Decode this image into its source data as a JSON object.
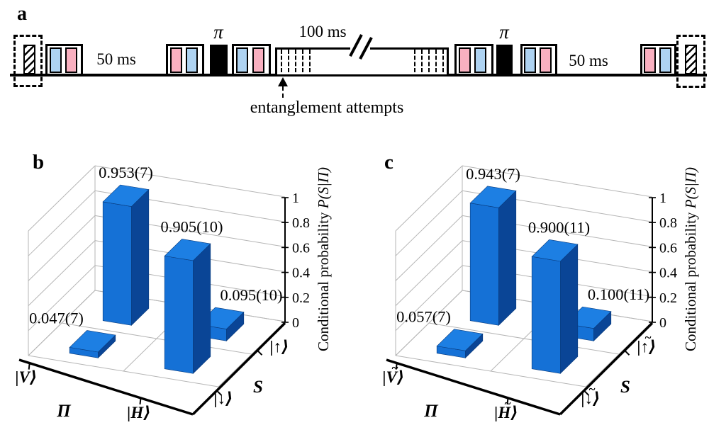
{
  "colors": {
    "pulse_blue": "#aed3f2",
    "pulse_pink": "#f9b0c0",
    "bar_top": "#1d7fe3",
    "bar_front": "#1571d6",
    "bar_side": "#0a4596",
    "bar_edge": "#083a7c",
    "grid": "#b5b5b5",
    "axis": "#000000"
  },
  "panel_a": {
    "label": "a",
    "delay_1": "50 ms",
    "pi_1": "π",
    "delay_mid": "100 ms",
    "annotation": "entanglement attempts",
    "pi_2": "π",
    "delay_2": "50 ms"
  },
  "chart_data": [
    {
      "panel_label": "b",
      "type": "bar",
      "projection": "3d-columns",
      "xlabel": "Π",
      "ylabel": "S",
      "zlabel_prefix": "Conditional probability ",
      "zlabel_math": "P(S|Π)",
      "pi_categories": [
        {
          "ket": "V",
          "tilde": false
        },
        {
          "ket": "H",
          "tilde": false
        }
      ],
      "s_categories": [
        {
          "ket": "↓",
          "tilde": false
        },
        {
          "ket": "↑",
          "tilde": false
        }
      ],
      "values": [
        [
          0.047,
          0.953
        ],
        [
          0.905,
          0.095
        ]
      ],
      "value_labels": [
        [
          "0.047(7)",
          "0.953(7)"
        ],
        [
          "0.905(10)",
          "0.095(10)"
        ]
      ],
      "z_ticks": [
        "0",
        "0.2",
        "0.4",
        "0.6",
        "0.8",
        "1"
      ],
      "zlim": [
        0,
        1
      ],
      "grid": true
    },
    {
      "panel_label": "c",
      "type": "bar",
      "projection": "3d-columns",
      "xlabel": "Π",
      "ylabel": "S",
      "zlabel_prefix": "Conditional probability ",
      "zlabel_math": "P(S|Π)",
      "pi_categories": [
        {
          "ket": "V",
          "tilde": true
        },
        {
          "ket": "H",
          "tilde": true
        }
      ],
      "s_categories": [
        {
          "ket": "↓",
          "tilde": true
        },
        {
          "ket": "↑",
          "tilde": true
        }
      ],
      "values": [
        [
          0.057,
          0.943
        ],
        [
          0.9,
          0.1
        ]
      ],
      "value_labels": [
        [
          "0.057(7)",
          "0.943(7)"
        ],
        [
          "0.900(11)",
          "0.100(11)"
        ]
      ],
      "z_ticks": [
        "0",
        "0.2",
        "0.4",
        "0.6",
        "0.8",
        "1"
      ],
      "zlim": [
        0,
        1
      ],
      "grid": true
    }
  ]
}
